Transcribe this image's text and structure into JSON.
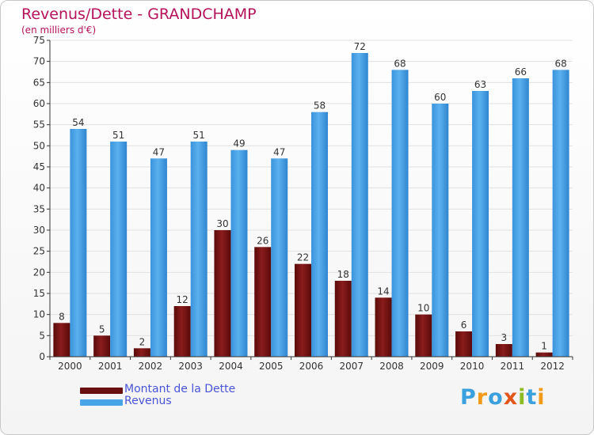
{
  "colors": {
    "debt": "#7a1414",
    "revenue": "#3c9be0",
    "title": "#b5125a",
    "grid": "#e1e1e1",
    "axis": "#333333"
  },
  "legend": {
    "debt_label": "Montant de la Dette",
    "revenue_label": "Revenus"
  },
  "logo": {
    "text": "Proxiti",
    "letters": [
      "P",
      "r",
      "o",
      "x",
      "i",
      "t",
      "i"
    ],
    "letter_colors": [
      "#3aa0de",
      "#f29a1a",
      "#3aa0de",
      "#e2561e",
      "#8dbb24",
      "#3aa0de",
      "#f29a1a"
    ]
  },
  "chart_data": {
    "type": "bar",
    "title": "Revenus/Dette - GRANDCHAMP",
    "subtitle": "(en milliers d'€)",
    "xlabel": "",
    "ylabel": "",
    "ylim": [
      0,
      75
    ],
    "yticks": [
      0,
      5,
      10,
      15,
      20,
      25,
      30,
      35,
      40,
      45,
      50,
      55,
      60,
      65,
      70,
      75
    ],
    "grid": true,
    "legend_position": "bottom-left",
    "categories": [
      "2000",
      "2001",
      "2002",
      "2003",
      "2004",
      "2005",
      "2006",
      "2007",
      "2008",
      "2009",
      "2010",
      "2011",
      "2012"
    ],
    "series": [
      {
        "name": "Montant de la Dette",
        "values": [
          8,
          5,
          2,
          12,
          30,
          26,
          22,
          18,
          14,
          10,
          6,
          3,
          1
        ]
      },
      {
        "name": "Revenus",
        "values": [
          54,
          51,
          47,
          51,
          49,
          47,
          58,
          72,
          68,
          60,
          63,
          66,
          68
        ]
      }
    ]
  }
}
